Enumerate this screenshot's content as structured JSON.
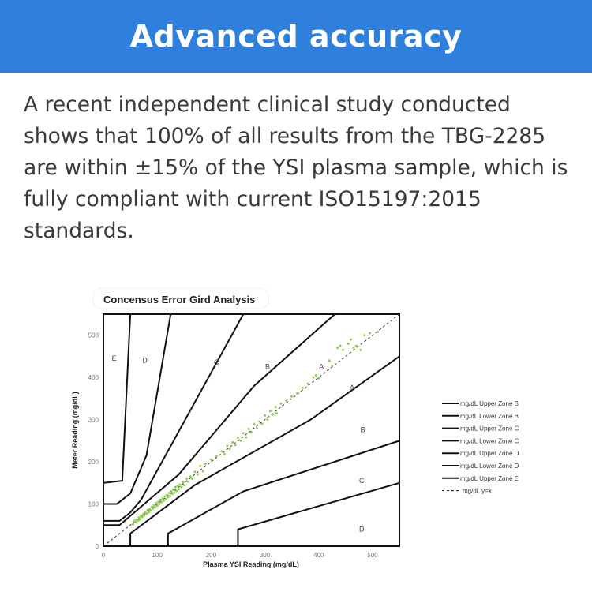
{
  "header": {
    "title": "Advanced accuracy"
  },
  "body": {
    "paragraph": "A recent independent clinical study conducted shows that 100% of all results from the TBG-2285 are within ±15% of the YSI plasma sample, which is fully compliant with current ISO15197:2015 standards."
  },
  "colors": {
    "header_bg": "#2f7fdc",
    "points": "#8ccf4a"
  },
  "chart_data": {
    "type": "scatter",
    "title": "Concensus Error Gird Analysis",
    "xlabel": "Plasma YSI Reading (mg/dL)",
    "ylabel": "Meter Reading (mg/dL)",
    "xlim": [
      0,
      550
    ],
    "ylim": [
      0,
      550
    ],
    "xticks": [
      0,
      100,
      200,
      300,
      400,
      500
    ],
    "yticks": [
      0,
      100,
      200,
      300,
      400,
      500
    ],
    "zone_lines": [
      {
        "name": "mg/dL Upper Zone B",
        "points": [
          [
            0,
            50
          ],
          [
            30,
            50
          ],
          [
            140,
            170
          ],
          [
            280,
            380
          ],
          [
            430,
            550
          ]
        ]
      },
      {
        "name": "mg/dL Lower Zone B",
        "points": [
          [
            50,
            0
          ],
          [
            50,
            30
          ],
          [
            170,
            145
          ],
          [
            385,
            300
          ],
          [
            550,
            450
          ]
        ]
      },
      {
        "name": "mg/dL Upper Zone C",
        "points": [
          [
            0,
            60
          ],
          [
            30,
            60
          ],
          [
            50,
            80
          ],
          [
            70,
            110
          ],
          [
            260,
            550
          ]
        ]
      },
      {
        "name": "mg/dL Lower Zone C",
        "points": [
          [
            120,
            0
          ],
          [
            120,
            30
          ],
          [
            260,
            130
          ],
          [
            550,
            250
          ]
        ]
      },
      {
        "name": "mg/dL Upper Zone D",
        "points": [
          [
            0,
            100
          ],
          [
            25,
            100
          ],
          [
            50,
            125
          ],
          [
            80,
            215
          ],
          [
            125,
            550
          ]
        ]
      },
      {
        "name": "mg/dL Lower Zone D",
        "points": [
          [
            250,
            0
          ],
          [
            250,
            40
          ],
          [
            550,
            150
          ]
        ]
      },
      {
        "name": "mg/dL Upper Zone E",
        "points": [
          [
            0,
            150
          ],
          [
            35,
            155
          ],
          [
            50,
            550
          ]
        ]
      }
    ],
    "diagonal": {
      "name": "mg/dL y=x",
      "points": [
        [
          0,
          0
        ],
        [
          550,
          550
        ]
      ]
    },
    "zone_labels": [
      {
        "text": "E",
        "x": 20,
        "y": 440
      },
      {
        "text": "D",
        "x": 77,
        "y": 435
      },
      {
        "text": "C",
        "x": 210,
        "y": 430
      },
      {
        "text": "B",
        "x": 305,
        "y": 420
      },
      {
        "text": "A",
        "x": 405,
        "y": 420
      },
      {
        "text": "A",
        "x": 462,
        "y": 370
      },
      {
        "text": "B",
        "x": 482,
        "y": 270
      },
      {
        "text": "C",
        "x": 480,
        "y": 150
      },
      {
        "text": "D",
        "x": 480,
        "y": 35
      }
    ],
    "legend": {
      "position": "right",
      "entries": [
        "mg/dL Upper Zone B",
        "mg/dL Lower Zone B",
        "mg/dL Upper Zone C",
        "mg/dL Lower Zone C",
        "mg/dL Upper Zone D",
        "mg/dL Lower Zone D",
        "mg/dL Upper Zone E",
        "mg/dL y=x"
      ]
    },
    "points": [
      [
        55,
        52
      ],
      [
        58,
        60
      ],
      [
        60,
        57
      ],
      [
        62,
        63
      ],
      [
        65,
        61
      ],
      [
        66,
        68
      ],
      [
        68,
        64
      ],
      [
        70,
        72
      ],
      [
        72,
        69
      ],
      [
        74,
        76
      ],
      [
        76,
        73
      ],
      [
        78,
        80
      ],
      [
        80,
        77
      ],
      [
        82,
        85
      ],
      [
        84,
        80
      ],
      [
        86,
        88
      ],
      [
        88,
        84
      ],
      [
        90,
        93
      ],
      [
        92,
        89
      ],
      [
        94,
        97
      ],
      [
        96,
        92
      ],
      [
        98,
        102
      ],
      [
        100,
        96
      ],
      [
        102,
        105
      ],
      [
        104,
        100
      ],
      [
        106,
        110
      ],
      [
        108,
        104
      ],
      [
        110,
        113
      ],
      [
        112,
        108
      ],
      [
        114,
        118
      ],
      [
        116,
        112
      ],
      [
        118,
        121
      ],
      [
        120,
        116
      ],
      [
        122,
        126
      ],
      [
        124,
        119
      ],
      [
        126,
        130
      ],
      [
        128,
        124
      ],
      [
        130,
        134
      ],
      [
        132,
        127
      ],
      [
        134,
        140
      ],
      [
        136,
        131
      ],
      [
        138,
        143
      ],
      [
        140,
        135
      ],
      [
        142,
        146
      ],
      [
        145,
        140
      ],
      [
        148,
        152
      ],
      [
        150,
        145
      ],
      [
        155,
        160
      ],
      [
        158,
        153
      ],
      [
        162,
        165
      ],
      [
        165,
        160
      ],
      [
        170,
        176
      ],
      [
        175,
        170
      ],
      [
        180,
        190
      ],
      [
        185,
        178
      ],
      [
        190,
        195
      ],
      [
        200,
        205
      ],
      [
        210,
        213
      ],
      [
        220,
        225
      ],
      [
        225,
        218
      ],
      [
        230,
        238
      ],
      [
        235,
        230
      ],
      [
        240,
        246
      ],
      [
        245,
        240
      ],
      [
        250,
        257
      ],
      [
        255,
        250
      ],
      [
        260,
        268
      ],
      [
        265,
        258
      ],
      [
        270,
        278
      ],
      [
        275,
        270
      ],
      [
        280,
        290
      ],
      [
        285,
        280
      ],
      [
        290,
        296
      ],
      [
        295,
        290
      ],
      [
        300,
        310
      ],
      [
        305,
        300
      ],
      [
        310,
        320
      ],
      [
        315,
        312
      ],
      [
        320,
        330
      ],
      [
        322,
        315
      ],
      [
        330,
        338
      ],
      [
        340,
        345
      ],
      [
        350,
        355
      ],
      [
        360,
        362
      ],
      [
        370,
        375
      ],
      [
        380,
        385
      ],
      [
        390,
        400
      ],
      [
        395,
        405
      ],
      [
        400,
        398
      ],
      [
        420,
        440
      ],
      [
        425,
        428
      ],
      [
        435,
        470
      ],
      [
        440,
        475
      ],
      [
        445,
        465
      ],
      [
        455,
        480
      ],
      [
        460,
        490
      ],
      [
        465,
        470
      ],
      [
        470,
        475
      ],
      [
        478,
        465
      ],
      [
        485,
        500
      ],
      [
        495,
        505
      ],
      [
        510,
        508
      ]
    ]
  }
}
